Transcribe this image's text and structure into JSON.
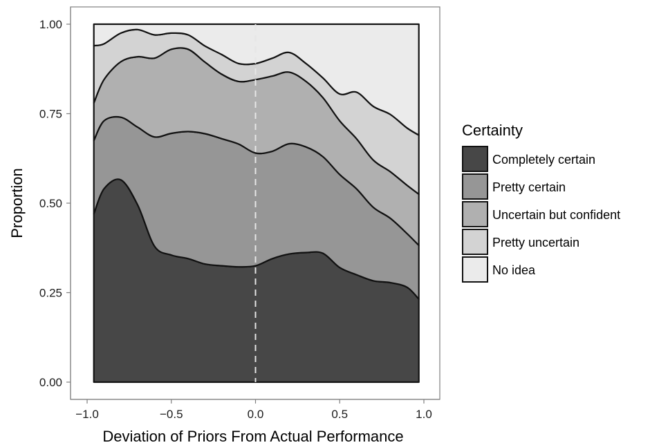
{
  "chart_data": {
    "type": "area",
    "position": "fill",
    "xlabel": "Deviation of Priors From Actual Performance",
    "ylabel": "Proportion",
    "xlim": [
      -1.0,
      1.0
    ],
    "ylim": [
      0.0,
      1.0
    ],
    "x_ticks": [
      -1.0,
      -0.5,
      0.0,
      0.5,
      1.0
    ],
    "x_tick_labels": [
      "−1.0",
      "−0.5",
      "0.0",
      "0.5",
      "1.0"
    ],
    "y_ticks": [
      0.0,
      0.25,
      0.5,
      0.75,
      1.0
    ],
    "y_tick_labels": [
      "0.00",
      "0.25",
      "0.50",
      "0.75",
      "1.00"
    ],
    "grid": false,
    "reference_line": {
      "x": 0.0,
      "style": "dashed"
    },
    "legend": {
      "title": "Certainty",
      "position": "right"
    },
    "x": [
      -0.96,
      -0.9,
      -0.8,
      -0.7,
      -0.6,
      -0.5,
      -0.4,
      -0.3,
      -0.2,
      -0.1,
      0.0,
      0.1,
      0.2,
      0.3,
      0.4,
      0.5,
      0.6,
      0.7,
      0.8,
      0.9,
      0.97
    ],
    "series": [
      {
        "name": "Completely certain",
        "color": "#474747",
        "values": [
          0.47,
          0.54,
          0.565,
          0.49,
          0.38,
          0.355,
          0.345,
          0.33,
          0.325,
          0.322,
          0.325,
          0.345,
          0.358,
          0.362,
          0.36,
          0.32,
          0.3,
          0.283,
          0.278,
          0.265,
          0.232
        ]
      },
      {
        "name": "Pretty certain",
        "color": "#969696",
        "values": [
          0.205,
          0.19,
          0.175,
          0.215,
          0.305,
          0.34,
          0.355,
          0.364,
          0.355,
          0.343,
          0.315,
          0.3,
          0.308,
          0.295,
          0.27,
          0.26,
          0.24,
          0.205,
          0.18,
          0.15,
          0.15
        ]
      },
      {
        "name": "Uncertain but confident",
        "color": "#b0b0b0",
        "values": [
          0.105,
          0.115,
          0.155,
          0.195,
          0.22,
          0.235,
          0.23,
          0.2,
          0.18,
          0.175,
          0.205,
          0.21,
          0.2,
          0.183,
          0.165,
          0.15,
          0.14,
          0.132,
          0.13,
          0.135,
          0.143
        ]
      },
      {
        "name": "Pretty uncertain",
        "color": "#d3d3d3",
        "values": [
          0.16,
          0.1,
          0.08,
          0.075,
          0.065,
          0.045,
          0.04,
          0.045,
          0.055,
          0.05,
          0.045,
          0.05,
          0.055,
          0.05,
          0.055,
          0.075,
          0.13,
          0.15,
          0.16,
          0.16,
          0.165
        ]
      },
      {
        "name": "No idea",
        "color": "#ebebeb",
        "values": [
          0.06,
          0.055,
          0.025,
          0.015,
          0.03,
          0.025,
          0.03,
          0.061,
          0.085,
          0.11,
          0.11,
          0.095,
          0.079,
          0.11,
          0.15,
          0.195,
          0.19,
          0.23,
          0.252,
          0.29,
          0.31
        ]
      }
    ]
  }
}
